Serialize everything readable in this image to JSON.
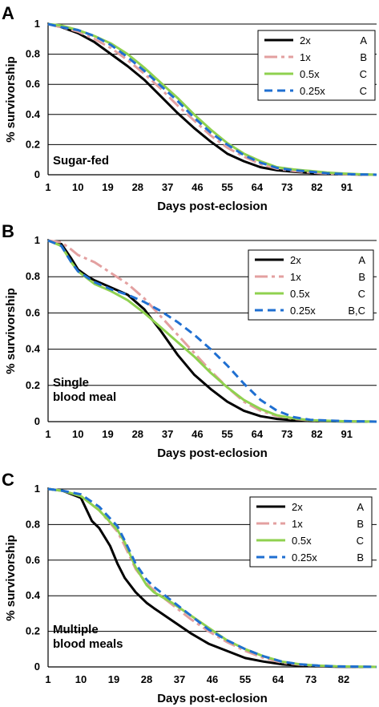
{
  "chart_data": [
    {
      "type": "line",
      "panel_label": "A",
      "annotation": [
        "Sugar-fed"
      ],
      "xlabel": "Days post-eclosion",
      "ylabel": "% survivorship",
      "xlim": [
        1,
        100
      ],
      "ylim": [
        0,
        1
      ],
      "xticks": [
        "1",
        "10",
        "19",
        "28",
        "37",
        "46",
        "55",
        "64",
        "73",
        "82",
        "91"
      ],
      "yticks": [
        "0",
        "0.2",
        "0.4",
        "0.6",
        "0.8",
        "1"
      ],
      "grid": "horizontal",
      "legend_position": "top-right",
      "series": [
        {
          "name": "2x",
          "sig": "A",
          "color": "#000000",
          "dash": "solid",
          "x": [
            1,
            5,
            10,
            15,
            20,
            25,
            30,
            35,
            40,
            45,
            50,
            55,
            60,
            65,
            70,
            75,
            80,
            85,
            90,
            95,
            100
          ],
          "y": [
            1.0,
            0.98,
            0.94,
            0.88,
            0.8,
            0.72,
            0.63,
            0.52,
            0.41,
            0.31,
            0.22,
            0.14,
            0.09,
            0.05,
            0.03,
            0.02,
            0.012,
            0.006,
            0.003,
            0.001,
            0
          ]
        },
        {
          "name": "1x",
          "sig": "B",
          "color": "#e3a0a0",
          "dash": "longdash",
          "x": [
            1,
            5,
            10,
            15,
            20,
            25,
            30,
            35,
            40,
            45,
            50,
            55,
            60,
            65,
            70,
            75,
            80,
            85,
            90,
            95,
            100
          ],
          "y": [
            1.0,
            0.98,
            0.95,
            0.9,
            0.84,
            0.76,
            0.67,
            0.57,
            0.46,
            0.36,
            0.26,
            0.18,
            0.12,
            0.07,
            0.04,
            0.025,
            0.015,
            0.008,
            0.004,
            0.001,
            0
          ]
        },
        {
          "name": "0.5x",
          "sig": "C",
          "color": "#8fd14f",
          "dash": "solid",
          "x": [
            1,
            5,
            10,
            15,
            20,
            25,
            30,
            35,
            40,
            45,
            50,
            55,
            60,
            65,
            70,
            75,
            80,
            85,
            90,
            95,
            100
          ],
          "y": [
            1.0,
            0.99,
            0.96,
            0.92,
            0.87,
            0.8,
            0.71,
            0.61,
            0.51,
            0.4,
            0.3,
            0.21,
            0.14,
            0.09,
            0.05,
            0.035,
            0.025,
            0.015,
            0.008,
            0.003,
            0
          ]
        },
        {
          "name": "0.25x",
          "sig": "C",
          "color": "#1f6fd1",
          "dash": "dash",
          "x": [
            1,
            5,
            10,
            15,
            20,
            25,
            30,
            35,
            40,
            45,
            50,
            55,
            60,
            65,
            70,
            75,
            80,
            85,
            90,
            95,
            100
          ],
          "y": [
            1.0,
            0.98,
            0.96,
            0.92,
            0.86,
            0.78,
            0.69,
            0.59,
            0.49,
            0.38,
            0.28,
            0.2,
            0.13,
            0.08,
            0.045,
            0.03,
            0.02,
            0.01,
            0.005,
            0.002,
            0
          ]
        }
      ]
    },
    {
      "type": "line",
      "panel_label": "B",
      "annotation": [
        "Single",
        "blood meal"
      ],
      "xlabel": "Days post-eclosion",
      "ylabel": "% survivorship",
      "xlim": [
        1,
        100
      ],
      "ylim": [
        0,
        1
      ],
      "xticks": [
        "1",
        "10",
        "19",
        "28",
        "37",
        "46",
        "55",
        "64",
        "73",
        "82",
        "91"
      ],
      "yticks": [
        "0",
        "0.2",
        "0.4",
        "0.6",
        "0.8",
        "1"
      ],
      "grid": "horizontal",
      "legend_position": "top-right",
      "series": [
        {
          "name": "2x",
          "sig": "A",
          "color": "#000000",
          "dash": "solid",
          "x": [
            1,
            5,
            8,
            10,
            13,
            15,
            20,
            25,
            30,
            35,
            40,
            45,
            50,
            55,
            60,
            65,
            70,
            75,
            80,
            90,
            100
          ],
          "y": [
            1.0,
            0.98,
            0.9,
            0.84,
            0.8,
            0.78,
            0.74,
            0.7,
            0.62,
            0.5,
            0.37,
            0.26,
            0.18,
            0.11,
            0.06,
            0.03,
            0.015,
            0.008,
            0.004,
            0.001,
            0
          ]
        },
        {
          "name": "1x",
          "sig": "B",
          "color": "#e3a0a0",
          "dash": "longdash",
          "x": [
            1,
            5,
            8,
            10,
            15,
            20,
            25,
            30,
            35,
            40,
            45,
            50,
            55,
            60,
            65,
            70,
            75,
            80,
            90,
            100
          ],
          "y": [
            1.0,
            0.99,
            0.95,
            0.92,
            0.88,
            0.82,
            0.76,
            0.68,
            0.58,
            0.48,
            0.38,
            0.28,
            0.19,
            0.11,
            0.06,
            0.03,
            0.015,
            0.007,
            0.002,
            0
          ]
        },
        {
          "name": "0.5x",
          "sig": "C",
          "color": "#8fd14f",
          "dash": "solid",
          "x": [
            1,
            5,
            8,
            10,
            15,
            20,
            25,
            30,
            35,
            40,
            45,
            50,
            55,
            60,
            65,
            70,
            75,
            80,
            90,
            100
          ],
          "y": [
            1.0,
            0.97,
            0.88,
            0.83,
            0.76,
            0.72,
            0.67,
            0.6,
            0.52,
            0.44,
            0.36,
            0.27,
            0.19,
            0.12,
            0.07,
            0.035,
            0.018,
            0.008,
            0.002,
            0
          ]
        },
        {
          "name": "0.25x",
          "sig": "B,C",
          "color": "#1f6fd1",
          "dash": "dash",
          "x": [
            1,
            5,
            8,
            10,
            15,
            20,
            25,
            30,
            35,
            40,
            45,
            50,
            55,
            60,
            65,
            70,
            75,
            80,
            90,
            100
          ],
          "y": [
            1.0,
            0.97,
            0.88,
            0.83,
            0.77,
            0.73,
            0.7,
            0.66,
            0.61,
            0.55,
            0.48,
            0.4,
            0.31,
            0.21,
            0.12,
            0.06,
            0.025,
            0.01,
            0.003,
            0
          ]
        }
      ]
    },
    {
      "type": "line",
      "panel_label": "C",
      "annotation": [
        "Multiple",
        "blood meals"
      ],
      "xlabel": "Days post-eclosion",
      "ylabel": "% survivorship",
      "xlim": [
        1,
        91
      ],
      "ylim": [
        0,
        1
      ],
      "xticks": [
        "1",
        "10",
        "19",
        "28",
        "37",
        "46",
        "55",
        "64",
        "73",
        "82"
      ],
      "yticks": [
        "0",
        "0.2",
        "0.4",
        "0.6",
        "0.8",
        "1"
      ],
      "grid": "horizontal",
      "legend_position": "top-right",
      "series": [
        {
          "name": "2x",
          "sig": "A",
          "color": "#000000",
          "dash": "solid",
          "x": [
            1,
            5,
            10,
            13,
            15,
            18,
            20,
            22,
            25,
            28,
            30,
            35,
            40,
            45,
            50,
            55,
            60,
            65,
            70,
            75,
            80,
            91
          ],
          "y": [
            1.0,
            0.99,
            0.95,
            0.82,
            0.78,
            0.68,
            0.58,
            0.5,
            0.42,
            0.36,
            0.33,
            0.26,
            0.19,
            0.13,
            0.09,
            0.05,
            0.03,
            0.015,
            0.007,
            0.003,
            0.001,
            0
          ]
        },
        {
          "name": "1x",
          "sig": "B",
          "color": "#e3a0a0",
          "dash": "longdash",
          "x": [
            1,
            5,
            10,
            15,
            20,
            22,
            25,
            28,
            30,
            35,
            40,
            45,
            50,
            55,
            60,
            65,
            70,
            75,
            80,
            91
          ],
          "y": [
            1.0,
            0.99,
            0.96,
            0.88,
            0.76,
            0.68,
            0.55,
            0.47,
            0.43,
            0.35,
            0.27,
            0.2,
            0.14,
            0.09,
            0.05,
            0.025,
            0.012,
            0.006,
            0.003,
            0
          ]
        },
        {
          "name": "0.5x",
          "sig": "C",
          "color": "#8fd14f",
          "dash": "solid",
          "x": [
            1,
            5,
            10,
            15,
            20,
            22,
            25,
            28,
            30,
            35,
            40,
            45,
            50,
            55,
            60,
            65,
            70,
            75,
            80,
            91
          ],
          "y": [
            1.0,
            0.99,
            0.96,
            0.88,
            0.77,
            0.7,
            0.56,
            0.46,
            0.42,
            0.36,
            0.29,
            0.22,
            0.15,
            0.1,
            0.06,
            0.03,
            0.015,
            0.007,
            0.003,
            0
          ]
        },
        {
          "name": "0.25x",
          "sig": "B",
          "color": "#1f6fd1",
          "dash": "dash",
          "x": [
            1,
            5,
            10,
            15,
            20,
            22,
            25,
            28,
            30,
            35,
            40,
            45,
            50,
            55,
            60,
            65,
            70,
            75,
            80,
            91
          ],
          "y": [
            1.0,
            0.99,
            0.97,
            0.9,
            0.79,
            0.71,
            0.58,
            0.49,
            0.45,
            0.37,
            0.29,
            0.21,
            0.15,
            0.1,
            0.06,
            0.03,
            0.015,
            0.007,
            0.003,
            0
          ]
        }
      ]
    }
  ]
}
